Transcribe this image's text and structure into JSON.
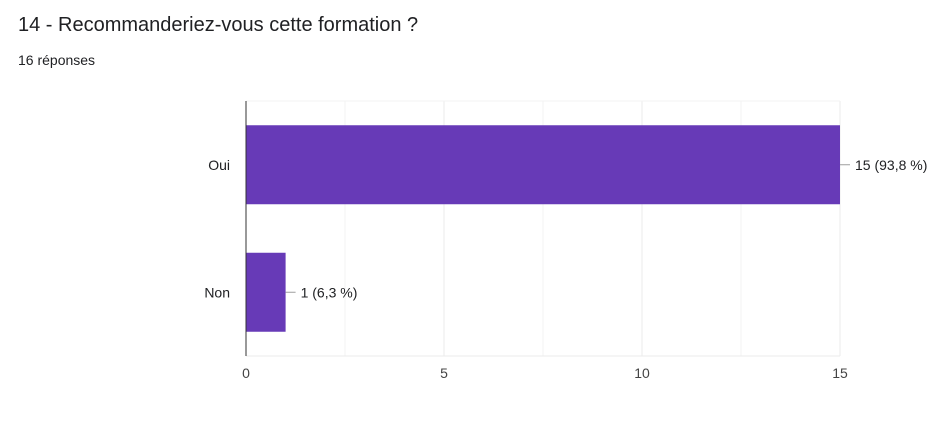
{
  "question": {
    "title": "14 - Recommanderiez-vous cette formation ?",
    "responses": "16 réponses"
  },
  "chart_data": {
    "type": "bar",
    "orientation": "horizontal",
    "categories": [
      "Oui",
      "Non"
    ],
    "values": [
      15,
      1
    ],
    "data_labels": [
      "15 (93,8 %)",
      "1 (6,3 %)"
    ],
    "xlim": [
      0,
      15
    ],
    "x_ticks": [
      0,
      5,
      10,
      15
    ],
    "x_minor_gridlines": [
      2.5,
      7.5,
      12.5
    ],
    "grid": true,
    "legend": "none",
    "bar_color": "#673ab7",
    "grid_color": "#ebebeb",
    "axis_color": "#333333",
    "label_color": "#202124"
  }
}
